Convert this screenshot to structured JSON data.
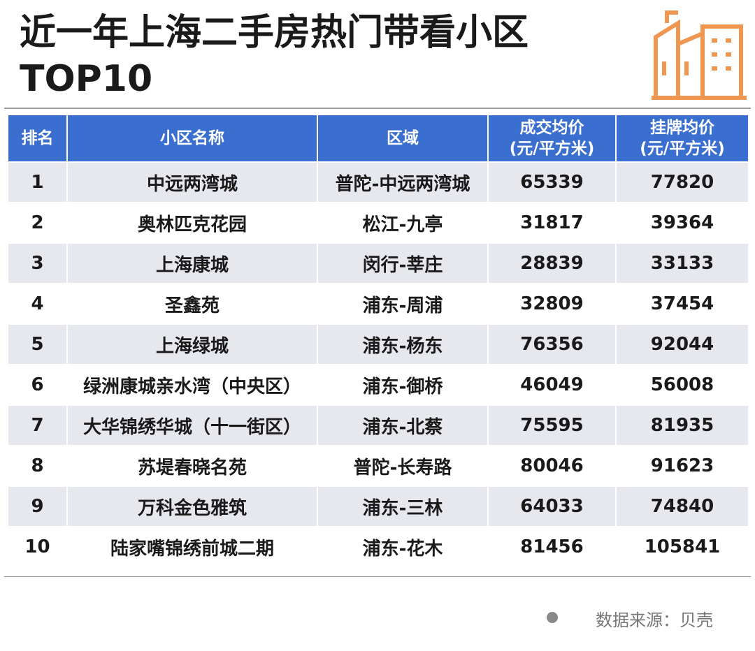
{
  "header": {
    "title_lines": [
      "近一年上海二手房热门带看小区",
      "TOP10"
    ]
  },
  "table": {
    "columns": [
      "排名",
      "小区名称",
      "区域",
      "成交均价\n(元/平方米)",
      "挂牌均价\n(元/平方米)"
    ],
    "rows": [
      [
        1,
        "中远两湾城",
        "普陀-中远两湾城",
        65339,
        77820
      ],
      [
        2,
        "奥林匹克花园",
        "松江-九亭",
        31817,
        39364
      ],
      [
        3,
        "上海康城",
        "闵行-莘庄",
        28839,
        33133
      ],
      [
        4,
        "圣鑫苑",
        "浦东-周浦",
        32809,
        37454
      ],
      [
        5,
        "上海绿城",
        "浦东-杨东",
        76356,
        92044
      ],
      [
        6,
        "绿洲康城亲水湾（中央区）",
        "浦东-御桥",
        46049,
        56008
      ],
      [
        7,
        "大华锦绣华城（十一街区）",
        "浦东-北蔡",
        75595,
        81935
      ],
      [
        8,
        "苏堤春晓名苑",
        "普陀-长寿路",
        80046,
        91623
      ],
      [
        9,
        "万科金色雅筑",
        "浦东-三林",
        64033,
        74840
      ],
      [
        10,
        "陆家嘴锦绣前城二期",
        "浦东-花木",
        81456,
        105841
      ]
    ]
  },
  "footer": {
    "source": "数据来源：贝壳"
  }
}
